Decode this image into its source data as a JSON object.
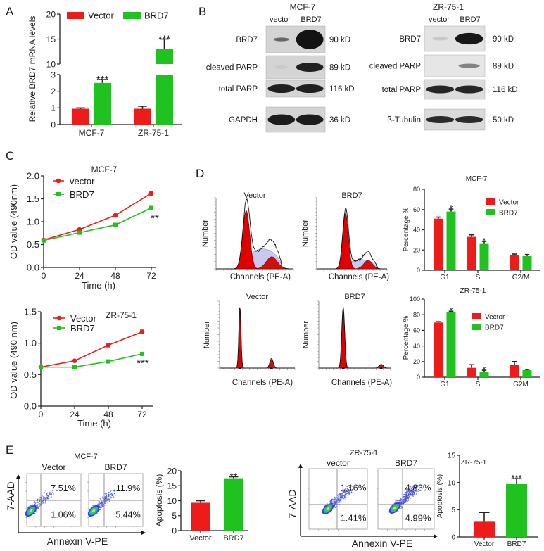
{
  "panel_labels": {
    "A": "A",
    "B": "B",
    "C": "C",
    "D": "D",
    "E": "E"
  },
  "colors": {
    "vector": "#ee1b1b",
    "brd7": "#1fc21f",
    "axis": "#222222"
  },
  "western_blots": [
    {
      "cell_line": "MCF-7",
      "lanes": [
        "vector",
        "BRD7"
      ],
      "rows": [
        {
          "label": "BRD7",
          "kd": "90 kD"
        },
        {
          "label": "cleaved PARP",
          "kd": "89 kD"
        },
        {
          "label": "total PARP",
          "kd": "116 kD"
        },
        {
          "label": "GAPDH",
          "kd": "36 kD"
        }
      ]
    },
    {
      "cell_line": "ZR-75-1",
      "lanes": [
        "vector",
        "BRD7"
      ],
      "rows": [
        {
          "label": "BRD7",
          "kd": "90 kD"
        },
        {
          "label": "cleaved PARP",
          "kd": "89 kD"
        },
        {
          "label": "total PARP",
          "kd": "116 kD"
        },
        {
          "label": "β-Tubulin",
          "kd": "50 kD"
        }
      ]
    }
  ],
  "cell_cycle_histograms": {
    "xlabel": "Channels (PE-A)",
    "ylabel": "Number",
    "plots": [
      {
        "title": "Vector"
      },
      {
        "title": "BRD7"
      },
      {
        "title": "Vector"
      },
      {
        "title": "BRD7"
      }
    ]
  },
  "flow_cytometry": [
    {
      "cell_line": "MCF-7",
      "xlabel": "Annexin V-PE",
      "ylabel": "7-AAD",
      "plots": [
        {
          "title": "Vector",
          "upper_right": "7.51%",
          "lower_right": "1.06%"
        },
        {
          "title": "BRD7",
          "upper_right": "11.9%",
          "lower_right": "5.44%"
        }
      ]
    },
    {
      "cell_line": "ZR-75-1",
      "xlabel": "Annexin V-PE",
      "ylabel": "7-AAD",
      "plots": [
        {
          "title": "vector",
          "upper_right": "1.16%",
          "lower_right": "1.41%"
        },
        {
          "title": "BRD7",
          "upper_right": "4.83%",
          "lower_right": "4.99%"
        }
      ]
    }
  ],
  "chart_data": [
    {
      "panel": "A",
      "type": "bar",
      "title": "",
      "ylabel": "Relative BRD7 mRNA levels",
      "xlabel": "",
      "categories": [
        "MCF-7",
        "ZR-75-1"
      ],
      "ylim": [
        0,
        20
      ],
      "y_axis_break": [
        3,
        10
      ],
      "yticks": [
        0,
        1,
        2,
        3,
        10,
        15,
        20
      ],
      "legend": "top",
      "series": [
        {
          "name": "Vector",
          "color": "#ee1b1b",
          "values": [
            0.95,
            0.95
          ],
          "errors": [
            0.05,
            0.15
          ],
          "significance": [
            "",
            ""
          ]
        },
        {
          "name": "BRD7",
          "color": "#1fc21f",
          "values": [
            2.5,
            13.0
          ],
          "errors": [
            0.2,
            2.0
          ],
          "significance": [
            "***",
            "***"
          ]
        }
      ]
    },
    {
      "panel": "C",
      "type": "line",
      "title": "MCF-7",
      "ylabel": "OD value (490nm)",
      "xlabel": "Time (h)",
      "x": [
        0,
        24,
        48,
        72
      ],
      "xlim": [
        0,
        72
      ],
      "ylim": [
        0,
        2.0
      ],
      "yticks": [
        "0.0",
        "0.5",
        "1.0",
        "1.5",
        "2.0"
      ],
      "legend": "top-left",
      "significance": "**",
      "series": [
        {
          "name": "vector",
          "color": "#ee1b1b",
          "marker": "circle",
          "values": [
            0.6,
            0.83,
            1.14,
            1.62
          ],
          "errors": [
            0.02,
            0.02,
            0.02,
            0.04
          ]
        },
        {
          "name": "BRD7",
          "color": "#1fc21f",
          "marker": "square",
          "values": [
            0.59,
            0.76,
            0.93,
            1.3
          ],
          "errors": [
            0.02,
            0.02,
            0.02,
            0.03
          ]
        }
      ]
    },
    {
      "panel": "C",
      "type": "line",
      "title": "ZR-75-1",
      "ylabel": "OD value (490 nm)",
      "xlabel": "Time (h)",
      "x": [
        0,
        24,
        48,
        72
      ],
      "xlim": [
        0,
        72
      ],
      "ylim": [
        0,
        1.5
      ],
      "yticks": [
        "0.0",
        "0.5",
        "1.0",
        "1.5"
      ],
      "legend": "top-left",
      "significance": "***",
      "series": [
        {
          "name": "Vector",
          "color": "#ee1b1b",
          "marker": "circle",
          "values": [
            0.62,
            0.72,
            0.97,
            1.18
          ],
          "errors": [
            0.02,
            0.01,
            0.03,
            0.03
          ]
        },
        {
          "name": "BRD7",
          "color": "#1fc21f",
          "marker": "square",
          "values": [
            0.62,
            0.62,
            0.71,
            0.83
          ],
          "errors": [
            0.02,
            0.01,
            0.02,
            0.02
          ]
        }
      ]
    },
    {
      "panel": "D",
      "type": "bar",
      "title": "MCF-7",
      "ylabel": "Percentage %",
      "xlabel": "",
      "categories": [
        "G1",
        "S",
        "G2/M"
      ],
      "ylim": [
        0,
        80
      ],
      "yticks": [
        0,
        20,
        40,
        60,
        80
      ],
      "legend": "top-right",
      "series": [
        {
          "name": "Vector",
          "color": "#ee1b1b",
          "values": [
            51,
            33,
            15
          ],
          "errors": [
            1.5,
            2,
            1
          ],
          "significance": [
            "",
            "",
            ""
          ]
        },
        {
          "name": "BRD7",
          "color": "#1fc21f",
          "values": [
            58,
            26,
            14
          ],
          "errors": [
            2.5,
            2.5,
            1.5
          ],
          "significance": [
            "*",
            "*",
            ""
          ]
        }
      ]
    },
    {
      "panel": "D",
      "type": "bar",
      "title": "ZR-75-1",
      "ylabel": "Percentage %",
      "xlabel": "",
      "categories": [
        "G1",
        "S",
        "G2M"
      ],
      "ylim": [
        0,
        100
      ],
      "yticks": [
        0,
        20,
        40,
        60,
        80,
        100
      ],
      "legend": "top-right",
      "series": [
        {
          "name": "Vector",
          "color": "#ee1b1b",
          "values": [
            70,
            12,
            16
          ],
          "errors": [
            1,
            4,
            4
          ],
          "significance": [
            "",
            "",
            ""
          ]
        },
        {
          "name": "BRD7",
          "color": "#1fc21f",
          "values": [
            83,
            7,
            9
          ],
          "errors": [
            1.5,
            2,
            1
          ],
          "significance": [
            "*",
            "*",
            ""
          ]
        }
      ]
    },
    {
      "panel": "E",
      "type": "bar",
      "title": "",
      "ylabel": "Apoptosis (%)",
      "xlabel": "",
      "categories": [
        "Vector",
        "BRD7"
      ],
      "ylim": [
        0,
        20
      ],
      "yticks": [
        0,
        5,
        10,
        15,
        20
      ],
      "series": [
        {
          "name": "",
          "color": [
            "#ee1b1b",
            "#1fc21f"
          ],
          "values": [
            9.3,
            17.5
          ],
          "errors": [
            0.7,
            0.5
          ],
          "significance": [
            "",
            "**"
          ]
        }
      ]
    },
    {
      "panel": "E",
      "type": "bar",
      "title": "ZR-75-1",
      "ylabel": "Apoptosis (%)",
      "xlabel": "",
      "categories": [
        "Vector",
        "BRD7"
      ],
      "ylim": [
        0,
        15
      ],
      "yticks": [
        0,
        5,
        10,
        15
      ],
      "series": [
        {
          "name": "",
          "color": [
            "#ee1b1b",
            "#1fc21f"
          ],
          "values": [
            2.8,
            9.7
          ],
          "errors": [
            1.7,
            1.0
          ],
          "significance": [
            "",
            "***"
          ]
        }
      ]
    }
  ]
}
